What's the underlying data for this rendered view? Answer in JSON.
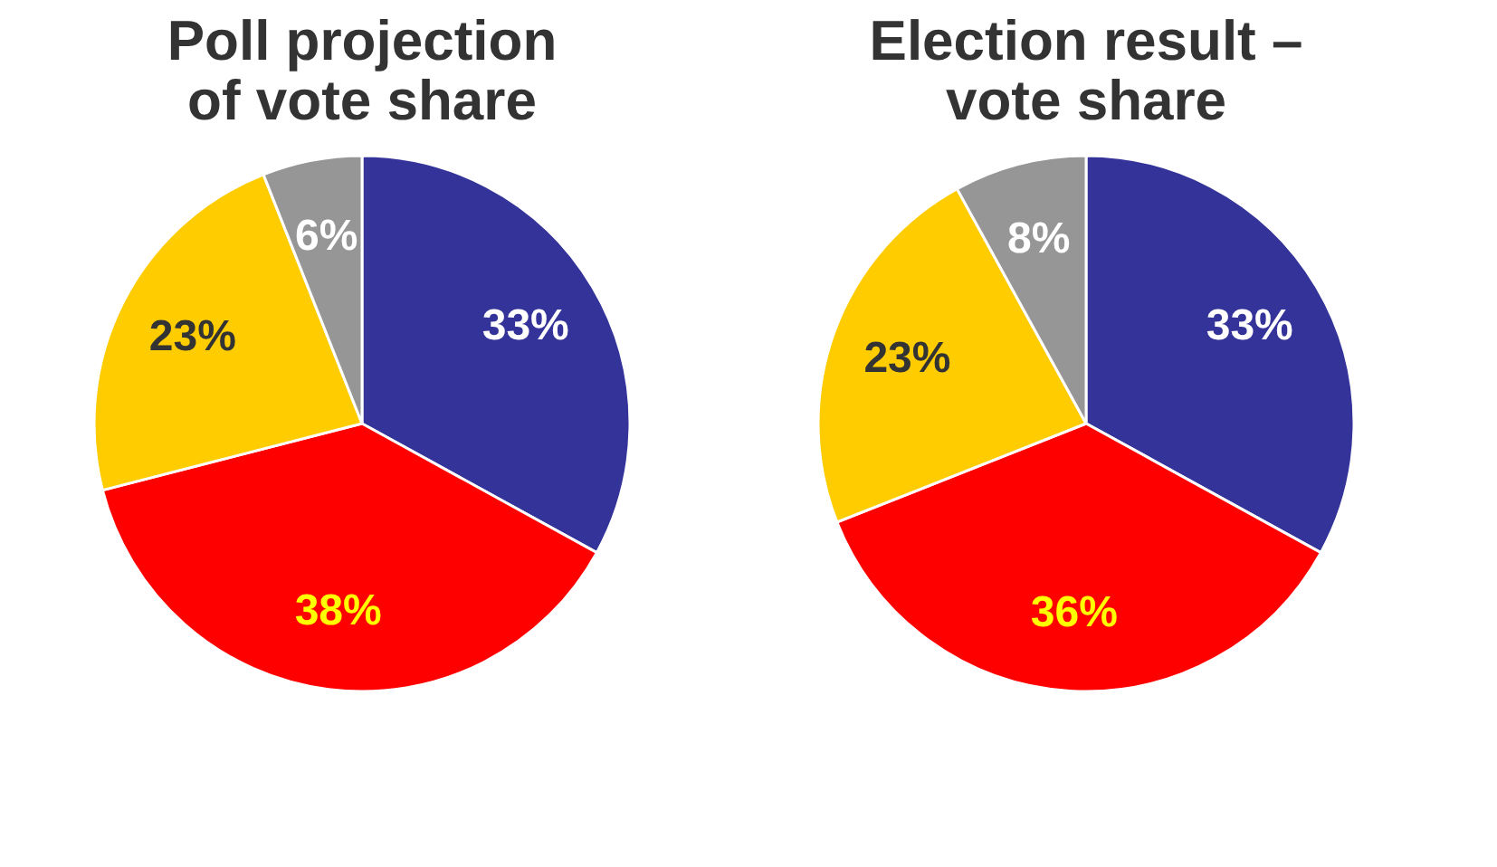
{
  "chart_data": [
    {
      "type": "pie",
      "title": "Poll projection\nof vote share",
      "categories": [
        null,
        null,
        null,
        null
      ],
      "values": [
        33,
        38,
        23,
        6
      ],
      "colors": [
        "#333399",
        "#ff0000",
        "#ffcc00",
        "#969696"
      ],
      "value_labels": [
        "33%",
        "38%",
        "23%",
        "6%"
      ]
    },
    {
      "type": "pie",
      "title": "Election result –\nvote share",
      "categories": [
        null,
        null,
        null,
        null
      ],
      "values": [
        33,
        36,
        23,
        8
      ],
      "colors": [
        "#333399",
        "#ff0000",
        "#ffcc00",
        "#969696"
      ],
      "value_labels": [
        "33%",
        "36%",
        "23%",
        "8%"
      ]
    }
  ]
}
